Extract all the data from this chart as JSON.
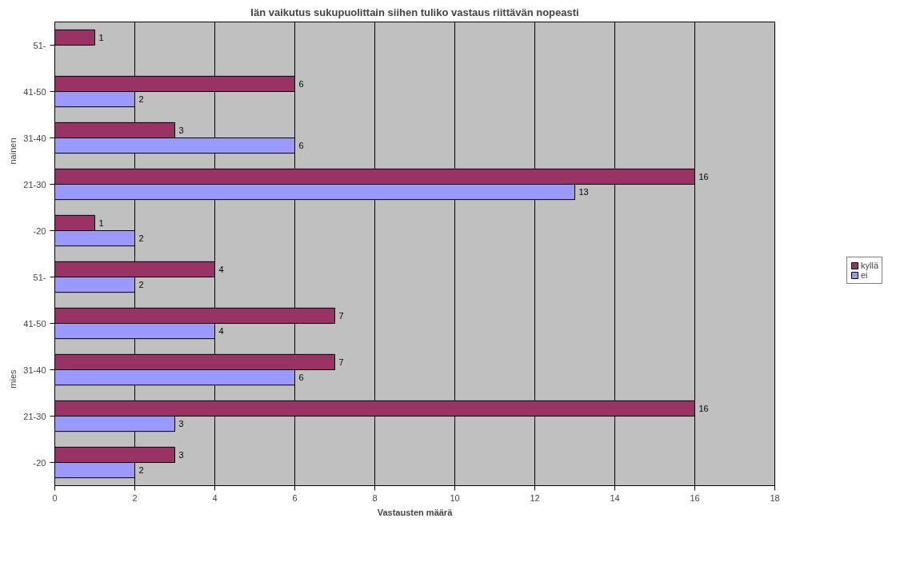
{
  "chart_data": {
    "type": "bar",
    "orientation": "horizontal",
    "title": "Iän vaikutus sukupuolittain siihen tuliko vastaus riittävän nopeasti",
    "xlabel": "Vastausten määrä",
    "categories": [
      "51-",
      "41-50",
      "31-40",
      "21-30",
      "-20",
      "51-",
      "41-50",
      "31-40",
      "21-30",
      "-20"
    ],
    "annotations": [
      "nainen",
      "mies"
    ],
    "series": [
      {
        "name": "kyllä",
        "color": "#993366",
        "values": [
          1,
          6,
          3,
          16,
          1,
          4,
          7,
          7,
          16,
          3
        ]
      },
      {
        "name": "ei",
        "color": "#9999ff",
        "values": [
          null,
          2,
          6,
          13,
          2,
          2,
          4,
          6,
          3,
          2
        ]
      }
    ],
    "xlim": [
      0,
      18
    ],
    "xticks": [
      0,
      2,
      4,
      6,
      8,
      10,
      12,
      14,
      16,
      18
    ],
    "grid": "x",
    "legend": "right",
    "data_labels": true
  }
}
